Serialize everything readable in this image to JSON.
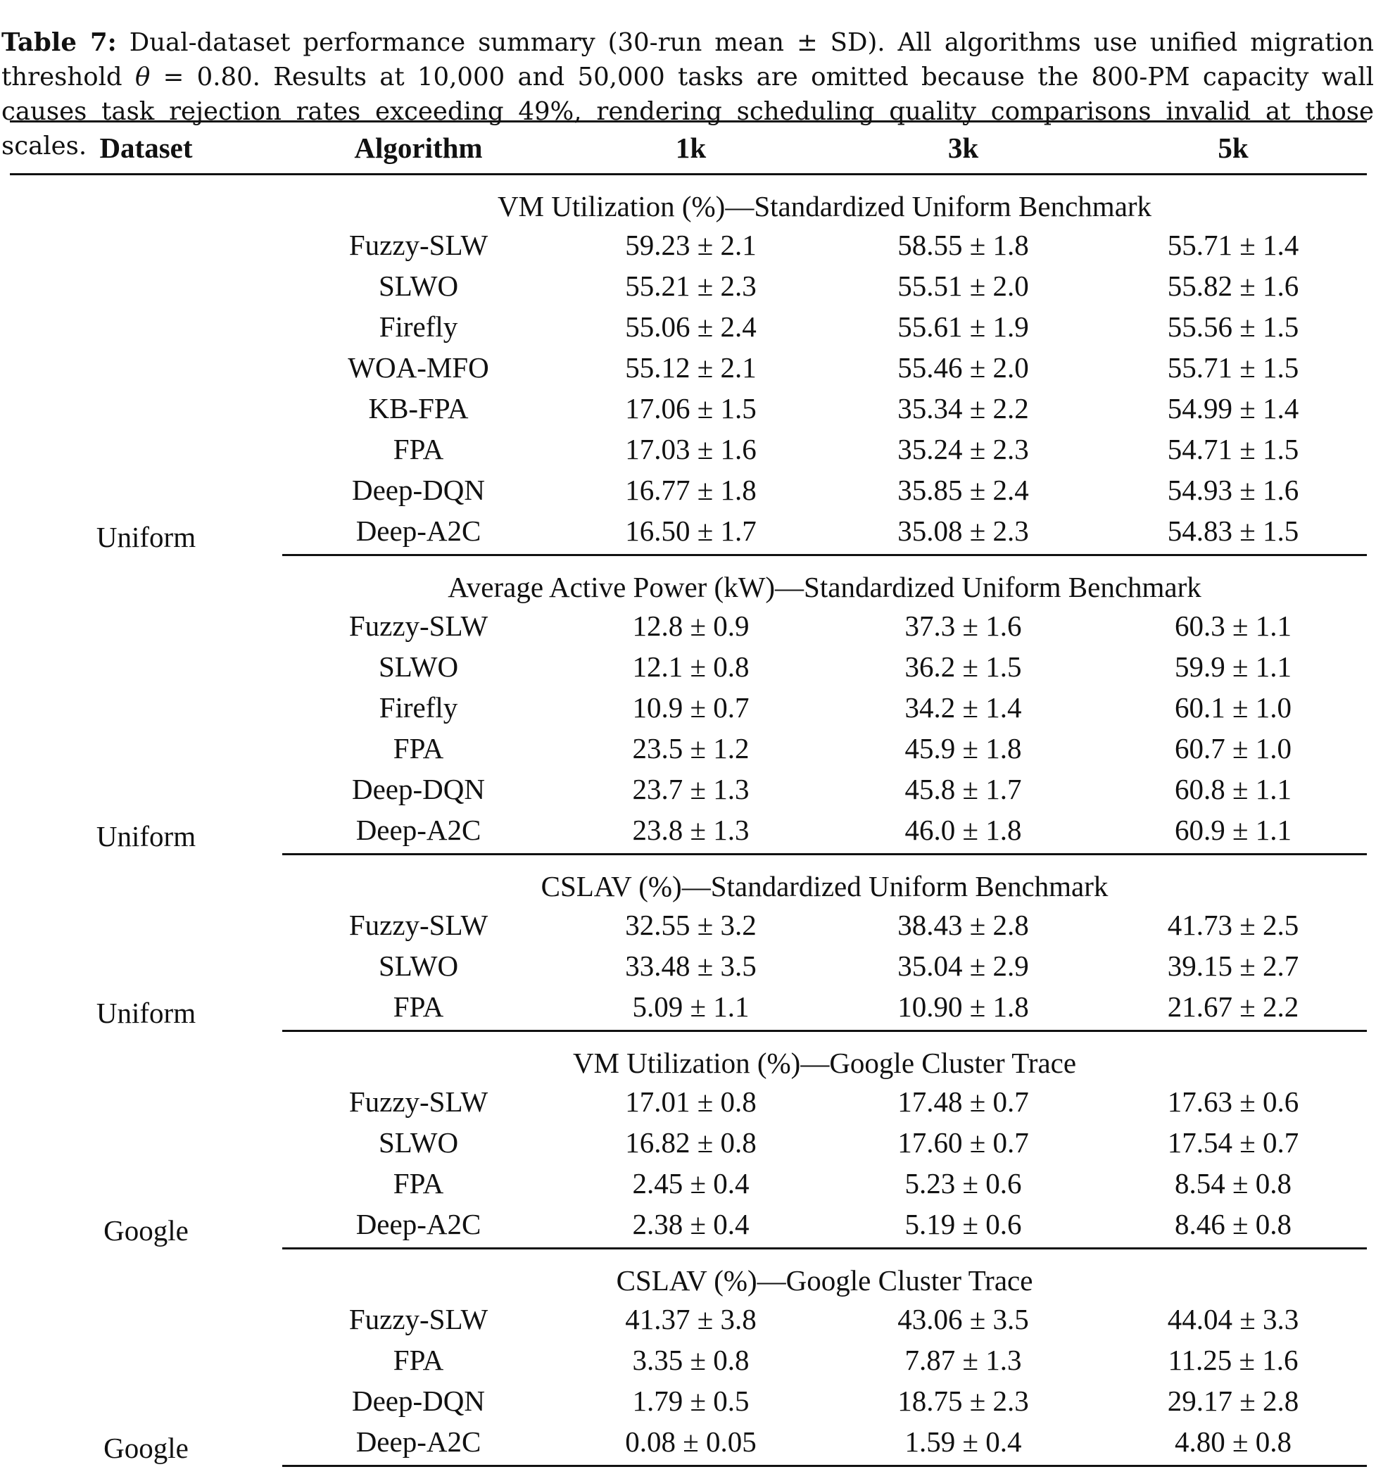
{
  "caption": {
    "label": "Table 7:",
    "text_part1": " Dual-dataset performance summary (30-run mean ± SD). All algorithms use unified migration threshold ",
    "theta": "θ",
    "text_part2": " = 0.80. Results at 10,000 and 50,000 tasks are omitted because the 800-PM capacity wall causes task rejection rates exceeding 49%, rendering scheduling quality comparisons invalid at those scales."
  },
  "table": {
    "headers": [
      "Dataset",
      "Algorithm",
      "1k",
      "3k",
      "5k"
    ],
    "groups": [
      {
        "dataset": "Uniform",
        "title": "VM Utilization (%)—Standardized Uniform Benchmark",
        "rows": [
          [
            "Fuzzy-SLW",
            "59.23 ± 2.1",
            "58.55 ± 1.8",
            "55.71 ± 1.4"
          ],
          [
            "SLWO",
            "55.21 ± 2.3",
            "55.51 ± 2.0",
            "55.82 ± 1.6"
          ],
          [
            "Firefly",
            "55.06 ± 2.4",
            "55.61 ± 1.9",
            "55.56 ± 1.5"
          ],
          [
            "WOA-MFO",
            "55.12 ± 2.1",
            "55.46 ± 2.0",
            "55.71 ± 1.5"
          ],
          [
            "KB-FPA",
            "17.06 ± 1.5",
            "35.34 ± 2.2",
            "54.99 ± 1.4"
          ],
          [
            "FPA",
            "17.03 ± 1.6",
            "35.24 ± 2.3",
            "54.71 ± 1.5"
          ],
          [
            "Deep-DQN",
            "16.77 ± 1.8",
            "35.85 ± 2.4",
            "54.93 ± 1.6"
          ],
          [
            "Deep-A2C",
            "16.50 ± 1.7",
            "35.08 ± 2.3",
            "54.83 ± 1.5"
          ]
        ]
      },
      {
        "dataset": "Uniform",
        "title": "Average Active Power (kW)—Standardized Uniform Benchmark",
        "rows": [
          [
            "Fuzzy-SLW",
            "12.8 ± 0.9",
            "37.3 ± 1.6",
            "60.3 ± 1.1"
          ],
          [
            "SLWO",
            "12.1 ± 0.8",
            "36.2 ± 1.5",
            "59.9 ± 1.1"
          ],
          [
            "Firefly",
            "10.9 ± 0.7",
            "34.2 ± 1.4",
            "60.1 ± 1.0"
          ],
          [
            "FPA",
            "23.5 ± 1.2",
            "45.9 ± 1.8",
            "60.7 ± 1.0"
          ],
          [
            "Deep-DQN",
            "23.7 ± 1.3",
            "45.8 ± 1.7",
            "60.8 ± 1.1"
          ],
          [
            "Deep-A2C",
            "23.8 ± 1.3",
            "46.0 ± 1.8",
            "60.9 ± 1.1"
          ]
        ]
      },
      {
        "dataset": "Uniform",
        "title": "CSLAV (%)—Standardized Uniform Benchmark",
        "rows": [
          [
            "Fuzzy-SLW",
            "32.55 ± 3.2",
            "38.43 ± 2.8",
            "41.73 ± 2.5"
          ],
          [
            "SLWO",
            "33.48 ± 3.5",
            "35.04 ± 2.9",
            "39.15 ± 2.7"
          ],
          [
            "FPA",
            "5.09 ± 1.1",
            "10.90 ± 1.8",
            "21.67 ± 2.2"
          ]
        ]
      },
      {
        "dataset": "Google",
        "title": "VM Utilization (%)—Google Cluster Trace",
        "rows": [
          [
            "Fuzzy-SLW",
            "17.01 ± 0.8",
            "17.48 ± 0.7",
            "17.63 ± 0.6"
          ],
          [
            "SLWO",
            "16.82 ± 0.8",
            "17.60 ± 0.7",
            "17.54 ± 0.7"
          ],
          [
            "FPA",
            "2.45 ± 0.4",
            "5.23 ± 0.6",
            "8.54 ± 0.8"
          ],
          [
            "Deep-A2C",
            "2.38 ± 0.4",
            "5.19 ± 0.6",
            "8.46 ± 0.8"
          ]
        ]
      },
      {
        "dataset": "Google",
        "title": "CSLAV (%)—Google Cluster Trace",
        "rows": [
          [
            "Fuzzy-SLW",
            "41.37 ± 3.8",
            "43.06 ± 3.5",
            "44.04 ± 3.3"
          ],
          [
            "FPA",
            "3.35 ± 0.8",
            "7.87 ± 1.3",
            "11.25 ± 1.6"
          ],
          [
            "Deep-DQN",
            "1.79 ± 0.5",
            "18.75 ± 2.3",
            "29.17 ± 2.8"
          ],
          [
            "Deep-A2C",
            "0.08 ± 0.05",
            "1.59 ± 0.4",
            "4.80 ± 0.8"
          ]
        ]
      }
    ]
  }
}
